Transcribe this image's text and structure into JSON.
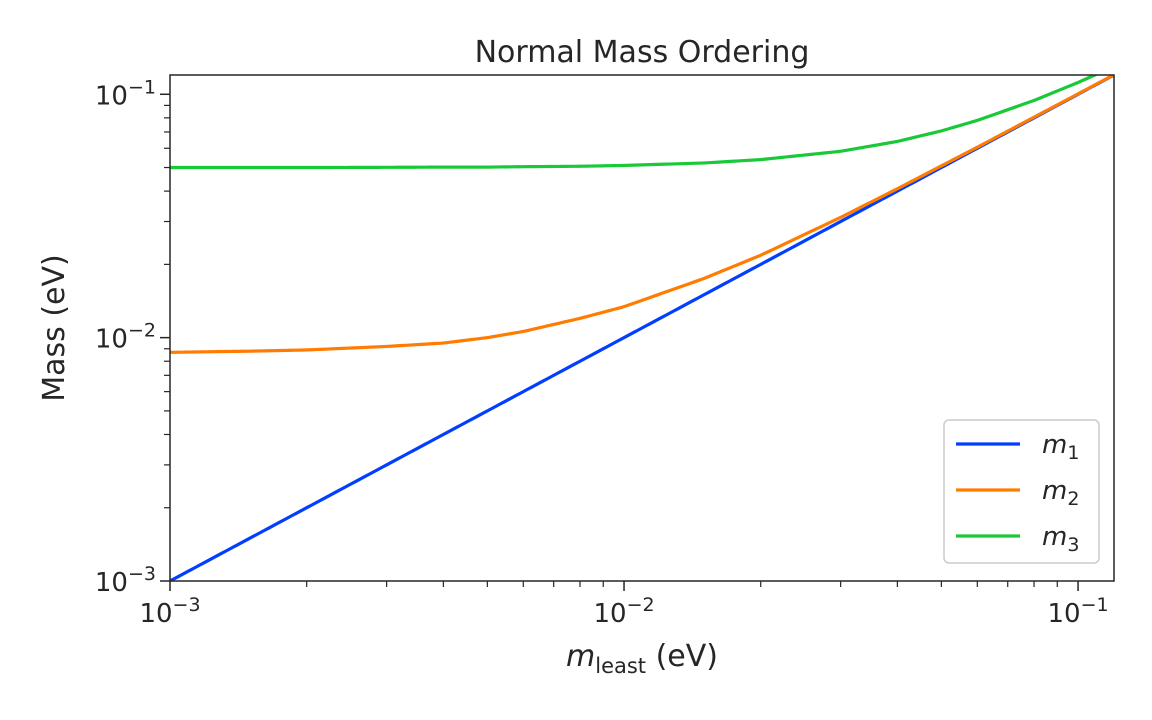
{
  "chart_data": {
    "type": "line",
    "title": "Normal Mass Ordering",
    "xlabel": {
      "main": "m",
      "sub": "least",
      "unit": " (eV)"
    },
    "ylabel": "Mass (eV)",
    "xscale": "log",
    "yscale": "log",
    "xlim": [
      0.001,
      0.12
    ],
    "ylim": [
      0.001,
      0.12
    ],
    "grid": false,
    "legend_position": "lower-right",
    "x_ticks": [
      {
        "value": 0.001,
        "base": "10",
        "exp": "−3"
      },
      {
        "value": 0.01,
        "base": "10",
        "exp": "−2"
      },
      {
        "value": 0.1,
        "base": "10",
        "exp": "−1"
      }
    ],
    "y_ticks": [
      {
        "value": 0.001,
        "base": "10",
        "exp": "−3"
      },
      {
        "value": 0.01,
        "base": "10",
        "exp": "−2"
      },
      {
        "value": 0.1,
        "base": "10",
        "exp": "−1"
      }
    ],
    "x": [
      0.001,
      0.0015,
      0.002,
      0.003,
      0.004,
      0.005,
      0.006,
      0.008,
      0.01,
      0.015,
      0.02,
      0.03,
      0.04,
      0.05,
      0.06,
      0.08,
      0.1,
      0.12
    ],
    "series": [
      {
        "name": "m",
        "sub": "1",
        "color": "#023eff",
        "values": [
          0.001,
          0.0015,
          0.002,
          0.003,
          0.004,
          0.005,
          0.006,
          0.008,
          0.01,
          0.015,
          0.02,
          0.03,
          0.04,
          0.05,
          0.06,
          0.08,
          0.1,
          0.12
        ]
      },
      {
        "name": "m",
        "sub": "2",
        "color": "#ff7c00",
        "values": [
          0.0087,
          0.0088,
          0.0089,
          0.0092,
          0.0095,
          0.01,
          0.0106,
          0.012,
          0.0134,
          0.0175,
          0.0218,
          0.0312,
          0.0409,
          0.0508,
          0.0606,
          0.0805,
          0.1004,
          0.1203
        ]
      },
      {
        "name": "m",
        "sub": "3",
        "color": "#1ac938",
        "values": [
          0.05,
          0.05,
          0.05,
          0.0501,
          0.0502,
          0.0502,
          0.0504,
          0.0506,
          0.051,
          0.0522,
          0.0539,
          0.0583,
          0.064,
          0.0707,
          0.0781,
          0.0943,
          0.1118,
          0.13
        ]
      }
    ]
  }
}
